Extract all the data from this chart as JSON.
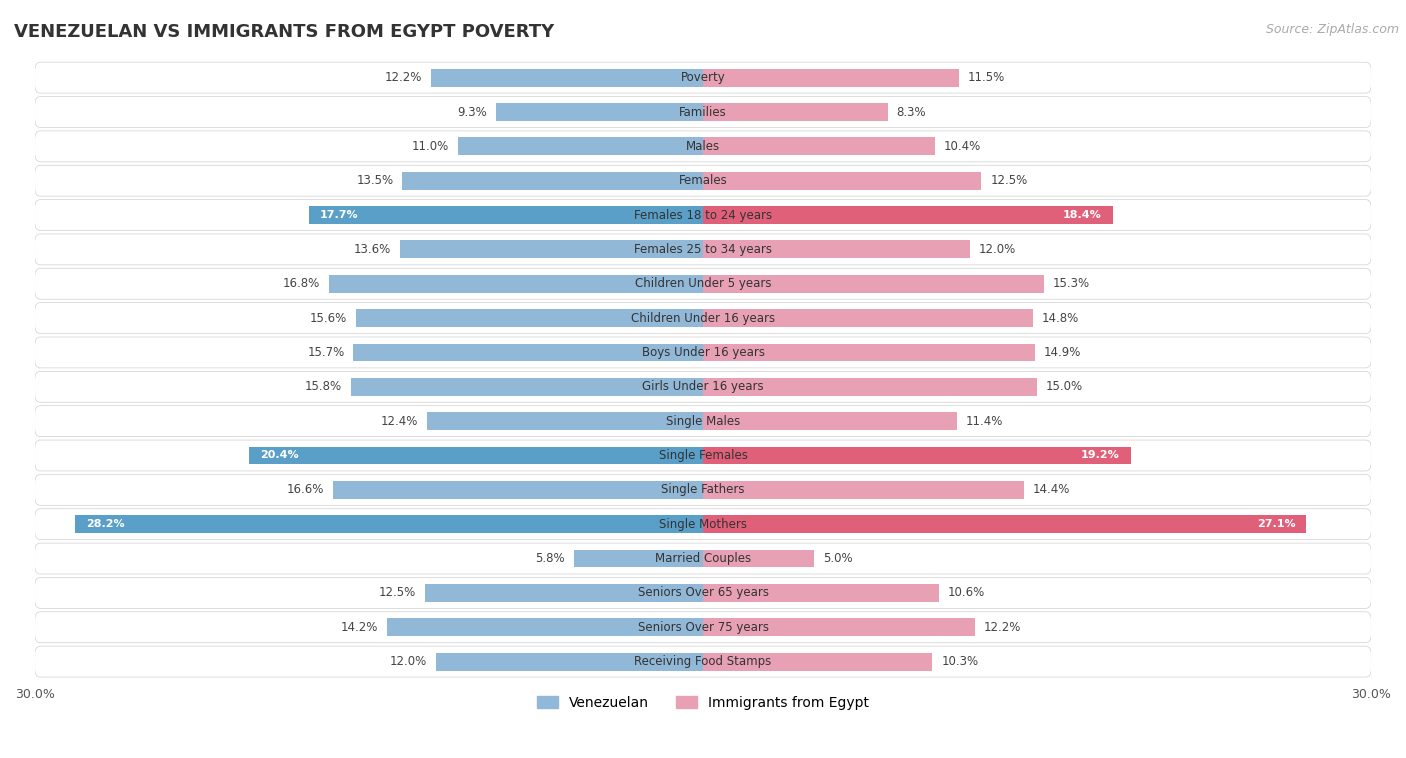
{
  "title": "VENEZUELAN VS IMMIGRANTS FROM EGYPT POVERTY",
  "source": "Source: ZipAtlas.com",
  "categories": [
    "Poverty",
    "Families",
    "Males",
    "Females",
    "Females 18 to 24 years",
    "Females 25 to 34 years",
    "Children Under 5 years",
    "Children Under 16 years",
    "Boys Under 16 years",
    "Girls Under 16 years",
    "Single Males",
    "Single Females",
    "Single Fathers",
    "Single Mothers",
    "Married Couples",
    "Seniors Over 65 years",
    "Seniors Over 75 years",
    "Receiving Food Stamps"
  ],
  "venezuelan": [
    12.2,
    9.3,
    11.0,
    13.5,
    17.7,
    13.6,
    16.8,
    15.6,
    15.7,
    15.8,
    12.4,
    20.4,
    16.6,
    28.2,
    5.8,
    12.5,
    14.2,
    12.0
  ],
  "egypt": [
    11.5,
    8.3,
    10.4,
    12.5,
    18.4,
    12.0,
    15.3,
    14.8,
    14.9,
    15.0,
    11.4,
    19.2,
    14.4,
    27.1,
    5.0,
    10.6,
    12.2,
    10.3
  ],
  "venezuelan_color": "#92b8d8",
  "egypt_color": "#e8a0b4",
  "venezuelan_highlight_color": "#5a9fc8",
  "egypt_highlight_color": "#e0607a",
  "highlight_rows": [
    4,
    11,
    13
  ],
  "xlim": 30.0,
  "bar_height": 0.52,
  "row_bg_color": "#e8e8e8",
  "row_inner_color": "#f7f7f7",
  "legend_venezuelan": "Venezuelan",
  "legend_egypt": "Immigrants from Egypt"
}
